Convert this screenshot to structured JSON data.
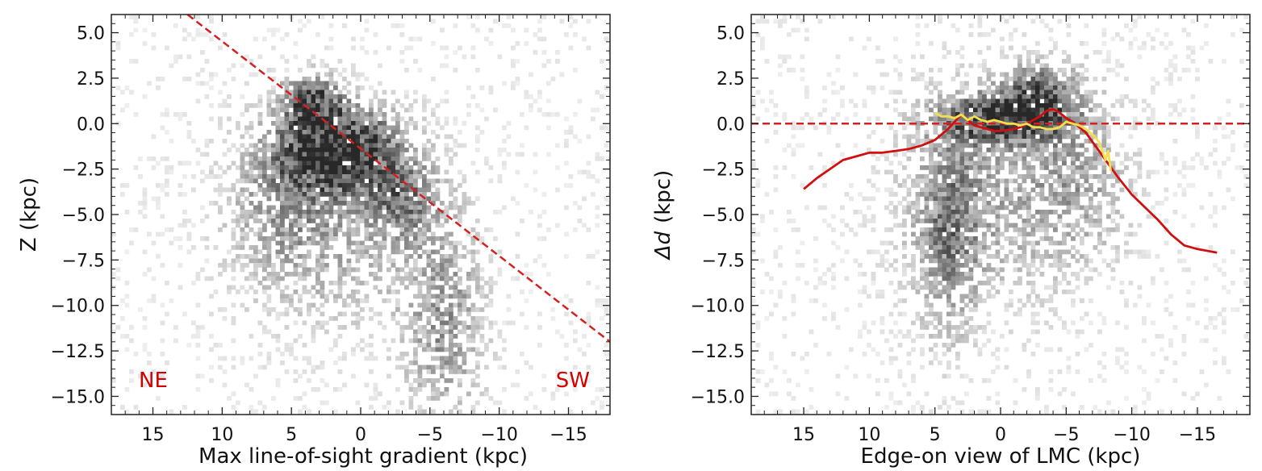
{
  "chart_data": [
    {
      "type": "heatmap",
      "title": "",
      "xlabel": "Max line-of-sight gradient (kpc)",
      "ylabel": "Z (kpc)",
      "xlim": [
        18,
        -18
      ],
      "ylim": [
        6,
        -16
      ],
      "x_tick_labels": [
        "15",
        "10",
        "5",
        "0",
        "−5",
        "−10",
        "−15"
      ],
      "x_ticks": [
        15,
        10,
        5,
        0,
        -5,
        -10,
        -15
      ],
      "y_tick_labels": [
        "−15.0",
        "−12.5",
        "−10.0",
        "−7.5",
        "−5.0",
        "−2.5",
        "0.0",
        "2.5",
        "5.0"
      ],
      "y_ticks": [
        -15,
        -12.5,
        -10,
        -7.5,
        -5,
        -2.5,
        0,
        2.5,
        5
      ],
      "annotations": [
        {
          "text": "NE",
          "position": "bottom-left"
        },
        {
          "text": "SW",
          "position": "bottom-right"
        }
      ],
      "density_blobs": [
        {
          "x": 2,
          "y": -2,
          "sx": 2.5,
          "sy": 1.3,
          "w": 1.0
        },
        {
          "x": 3.5,
          "y": 1.2,
          "sx": 1.5,
          "sy": 1.0,
          "w": 0.9
        },
        {
          "x": 1,
          "y": -0.5,
          "sx": 3,
          "sy": 1.2,
          "w": 0.6
        },
        {
          "x": -3,
          "y": -4,
          "sx": 1.8,
          "sy": 1.6,
          "w": 0.55
        },
        {
          "x": -6,
          "y": -11,
          "sx": 2,
          "sy": 4,
          "w": 0.5
        },
        {
          "x": 2,
          "y": -6,
          "sx": 4.5,
          "sy": 3.5,
          "w": 0.35
        },
        {
          "x": 6,
          "y": -4,
          "sx": 2.5,
          "sy": 3,
          "w": 0.3
        }
      ],
      "series": [
        {
          "name": "fit-line",
          "style": "dashed",
          "color": "#d62020",
          "x": [
            12.5,
            -18
          ],
          "y": [
            6,
            -12
          ]
        }
      ]
    },
    {
      "type": "heatmap",
      "title": "",
      "xlabel": "Edge-on view of LMC (kpc)",
      "ylabel_symbol": "Δd",
      "ylabel_unit": "(kpc)",
      "xlim": [
        19,
        -19
      ],
      "ylim": [
        6,
        -16
      ],
      "x_tick_labels": [
        "15",
        "10",
        "5",
        "0",
        "−5",
        "−10",
        "−15"
      ],
      "x_ticks": [
        15,
        10,
        5,
        0,
        -5,
        -10,
        -15
      ],
      "y_tick_labels": [
        "−15.0",
        "−12.5",
        "−10.0",
        "−7.5",
        "−5.0",
        "−2.5",
        "0.0",
        "2.5",
        "5.0"
      ],
      "y_ticks": [
        -15,
        -12.5,
        -10,
        -7.5,
        -5,
        -2.5,
        0,
        2.5,
        5
      ],
      "density_blobs": [
        {
          "x": 0,
          "y": 0.3,
          "sx": 3,
          "sy": 0.9,
          "w": 1.0
        },
        {
          "x": -3,
          "y": 1.5,
          "sx": 2,
          "sy": 1.2,
          "w": 0.75
        },
        {
          "x": 4,
          "y": -6,
          "sx": 1.8,
          "sy": 4,
          "w": 0.5
        },
        {
          "x": 0,
          "y": -4,
          "sx": 5,
          "sy": 4,
          "w": 0.35
        },
        {
          "x": -6,
          "y": -3,
          "sx": 2.5,
          "sy": 3,
          "w": 0.3
        }
      ],
      "series": [
        {
          "name": "zero-line",
          "style": "dashed",
          "color": "#d62020",
          "x": [
            19,
            -19
          ],
          "y": [
            0,
            0
          ]
        },
        {
          "name": "red-profile",
          "style": "solid",
          "color": "#d01010",
          "x": [
            15,
            14,
            13,
            12,
            11,
            10,
            9,
            8,
            7,
            6,
            5,
            4,
            3.5,
            3,
            2.5,
            2,
            1.5,
            1,
            0.5,
            0,
            -0.5,
            -1,
            -1.5,
            -2,
            -2.5,
            -3,
            -3.5,
            -4,
            -4.5,
            -5,
            -5.5,
            -6,
            -6.5,
            -7,
            -7.5,
            -8,
            -9,
            -10,
            -11,
            -12,
            -13,
            -14,
            -15,
            -16.5
          ],
          "y": [
            -3.6,
            -3.0,
            -2.5,
            -2.0,
            -1.8,
            -1.6,
            -1.6,
            -1.5,
            -1.4,
            -1.2,
            -0.9,
            -0.3,
            0.1,
            0.5,
            0.2,
            -0.1,
            -0.2,
            -0.3,
            -0.4,
            -0.4,
            -0.35,
            -0.3,
            -0.2,
            0.0,
            0.2,
            0.4,
            0.7,
            0.8,
            0.6,
            0.3,
            0.1,
            -0.2,
            -0.5,
            -1.0,
            -1.5,
            -2.0,
            -3.0,
            -3.9,
            -4.6,
            -5.3,
            -6.1,
            -6.7,
            -6.9,
            -7.1
          ]
        },
        {
          "name": "yellow-profile",
          "style": "solid",
          "color": "#f4e04d",
          "x": [
            5,
            4.5,
            4,
            3.5,
            3,
            2.5,
            2,
            1.5,
            1,
            0.5,
            0,
            -0.5,
            -1,
            -1.5,
            -2,
            -2.5,
            -3,
            -3.5,
            -4,
            -4.5,
            -5,
            -5.5,
            -6,
            -6.5,
            -7,
            -7.5,
            -7.8,
            -8,
            -8.2,
            -8.4
          ],
          "y": [
            0.6,
            0.4,
            0.4,
            0.3,
            0.5,
            0.2,
            0.4,
            0.2,
            0.1,
            0.2,
            0.1,
            0.0,
            0.0,
            -0.1,
            0.0,
            -0.2,
            -0.2,
            -0.3,
            -0.3,
            -0.2,
            0.1,
            0.0,
            -0.1,
            -0.3,
            -0.6,
            -1.0,
            -1.6,
            -2.0,
            -1.5,
            -2.6
          ]
        }
      ]
    }
  ]
}
